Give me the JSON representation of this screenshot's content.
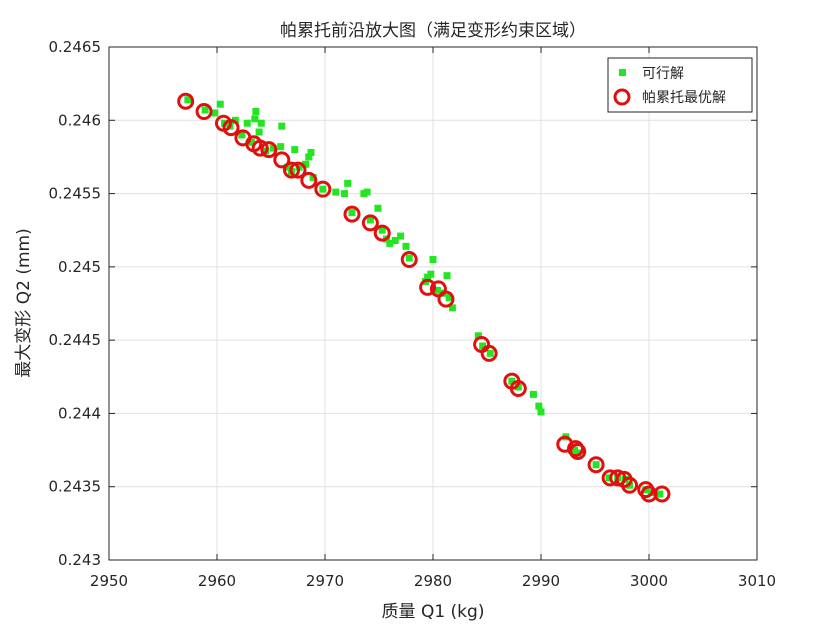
{
  "chart_data": {
    "type": "scatter",
    "title": "帕累托前沿放大图（满足变形约束区域）",
    "xlabel": "质量 Q1 (kg)",
    "ylabel": "最大变形 Q2 (mm)",
    "xlim": [
      2950,
      3010
    ],
    "ylim": [
      0.243,
      0.2465
    ],
    "xticks": [
      2950,
      2960,
      2970,
      2980,
      2990,
      3000,
      3010
    ],
    "xtick_labels": [
      "2950",
      "2960",
      "2970",
      "2980",
      "2990",
      "3000",
      "3010"
    ],
    "yticks": [
      0.243,
      0.2435,
      0.244,
      0.2445,
      0.245,
      0.2455,
      0.246,
      0.2465
    ],
    "ytick_labels": [
      "0.243",
      "0.2435",
      "0.244",
      "0.2445",
      "0.245",
      "0.2455",
      "0.246",
      "0.2465"
    ],
    "grid": true,
    "legend_position": "top-right",
    "colors": {
      "feasible": "#22e622",
      "pareto": "#e01010",
      "axis": "#262626",
      "grid": "#e0e0e0"
    },
    "series": [
      {
        "name": "可行解",
        "marker": "square",
        "points": [
          [
            2957.3,
            0.24614
          ],
          [
            2958.9,
            0.24607
          ],
          [
            2959.8,
            0.24605
          ],
          [
            2960.3,
            0.24611
          ],
          [
            2960.7,
            0.24598
          ],
          [
            2961.2,
            0.24596
          ],
          [
            2961.7,
            0.246
          ],
          [
            2962.3,
            0.2459
          ],
          [
            2962.8,
            0.24598
          ],
          [
            2963.2,
            0.24585
          ],
          [
            2963.5,
            0.24601
          ],
          [
            2963.6,
            0.24606
          ],
          [
            2963.9,
            0.24592
          ],
          [
            2964.1,
            0.24598
          ],
          [
            2964.5,
            0.24579
          ],
          [
            2965.2,
            0.24581
          ],
          [
            2965.9,
            0.24582
          ],
          [
            2966.0,
            0.24596
          ],
          [
            2966.5,
            0.24568
          ],
          [
            2966.9,
            0.24565
          ],
          [
            2967.2,
            0.2458
          ],
          [
            2967.6,
            0.24568
          ],
          [
            2968.2,
            0.2457
          ],
          [
            2968.5,
            0.24575
          ],
          [
            2968.7,
            0.24578
          ],
          [
            2968.9,
            0.24561
          ],
          [
            2969.8,
            0.24553
          ],
          [
            2971.0,
            0.24551
          ],
          [
            2971.8,
            0.2455
          ],
          [
            2972.1,
            0.24557
          ],
          [
            2972.5,
            0.24537
          ],
          [
            2973.6,
            0.2455
          ],
          [
            2973.9,
            0.24551
          ],
          [
            2974.2,
            0.24532
          ],
          [
            2974.9,
            0.2454
          ],
          [
            2975.3,
            0.24525
          ],
          [
            2975.7,
            0.24519
          ],
          [
            2976.0,
            0.24516
          ],
          [
            2976.5,
            0.24518
          ],
          [
            2977.0,
            0.24521
          ],
          [
            2977.5,
            0.24514
          ],
          [
            2977.8,
            0.24506
          ],
          [
            2979.3,
            0.2449
          ],
          [
            2979.5,
            0.24493
          ],
          [
            2979.8,
            0.24495
          ],
          [
            2980.0,
            0.24505
          ],
          [
            2980.4,
            0.24484
          ],
          [
            2980.9,
            0.24482
          ],
          [
            2981.3,
            0.24494
          ],
          [
            2981.5,
            0.24479
          ],
          [
            2981.8,
            0.24472
          ],
          [
            2984.2,
            0.24453
          ],
          [
            2984.6,
            0.24446
          ],
          [
            2985.3,
            0.24441
          ],
          [
            2987.3,
            0.24422
          ],
          [
            2987.9,
            0.24418
          ],
          [
            2989.3,
            0.24413
          ],
          [
            2989.8,
            0.24405
          ],
          [
            2990.0,
            0.24401
          ],
          [
            2992.3,
            0.24384
          ],
          [
            2993.1,
            0.24375
          ],
          [
            2993.4,
            0.24373
          ],
          [
            2995.1,
            0.24365
          ],
          [
            2996.3,
            0.24356
          ],
          [
            2997.1,
            0.24356
          ],
          [
            2997.8,
            0.24355
          ],
          [
            2998.2,
            0.24351
          ],
          [
            2999.7,
            0.24348
          ],
          [
            3000.2,
            0.24346
          ],
          [
            3001.0,
            0.24345
          ]
        ]
      },
      {
        "name": "帕累托最优解",
        "marker": "circle",
        "points": [
          [
            2957.1,
            0.24613
          ],
          [
            2958.8,
            0.24606
          ],
          [
            2960.6,
            0.24598
          ],
          [
            2961.3,
            0.24595
          ],
          [
            2962.4,
            0.24588
          ],
          [
            2963.4,
            0.24584
          ],
          [
            2964.0,
            0.24581
          ],
          [
            2964.8,
            0.2458
          ],
          [
            2966.0,
            0.24573
          ],
          [
            2966.9,
            0.24566
          ],
          [
            2967.5,
            0.24566
          ],
          [
            2968.5,
            0.24559
          ],
          [
            2969.8,
            0.24553
          ],
          [
            2972.5,
            0.24536
          ],
          [
            2974.2,
            0.2453
          ],
          [
            2975.3,
            0.24523
          ],
          [
            2977.8,
            0.24505
          ],
          [
            2979.5,
            0.24486
          ],
          [
            2980.5,
            0.24485
          ],
          [
            2981.2,
            0.24478
          ],
          [
            2984.5,
            0.24447
          ],
          [
            2985.2,
            0.24441
          ],
          [
            2987.3,
            0.24422
          ],
          [
            2987.9,
            0.24417
          ],
          [
            2992.2,
            0.24379
          ],
          [
            2993.2,
            0.24376
          ],
          [
            2993.4,
            0.24374
          ],
          [
            2995.1,
            0.24365
          ],
          [
            2996.4,
            0.24356
          ],
          [
            2997.1,
            0.24356
          ],
          [
            2997.7,
            0.24355
          ],
          [
            2998.2,
            0.24351
          ],
          [
            2999.7,
            0.24348
          ],
          [
            3000.0,
            0.24345
          ],
          [
            3001.2,
            0.24345
          ]
        ]
      }
    ]
  }
}
